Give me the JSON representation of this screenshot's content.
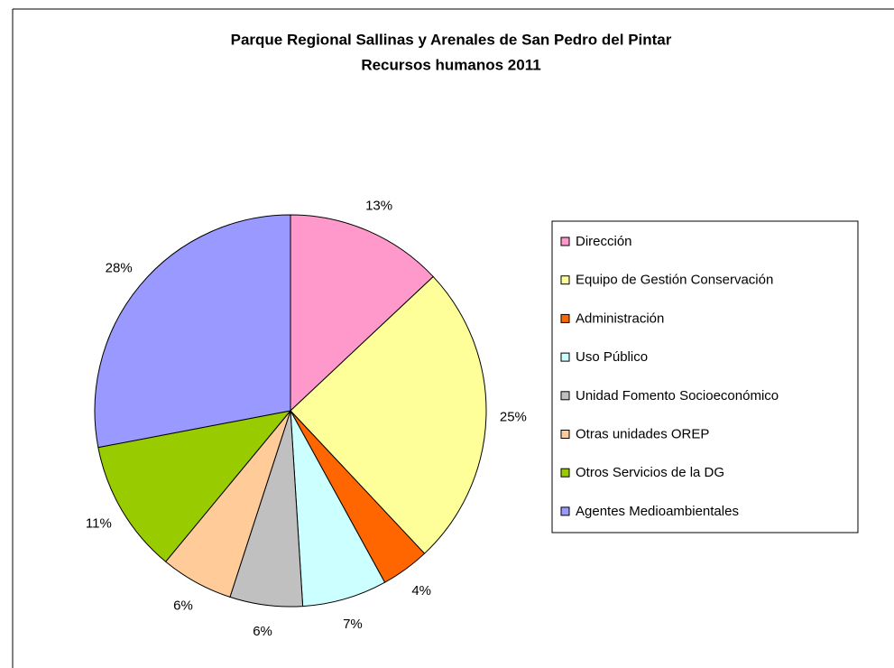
{
  "chart_data": {
    "type": "pie",
    "title": "Parque Regional Sallinas y Arenales de San Pedro del Pintar",
    "subtitle": "Recursos humanos 2011",
    "categories": [
      "Dirección",
      "Equipo de Gestión Conservación",
      "Administración",
      "Uso Público",
      "Unidad Fomento Socioeconómico",
      "Otras unidades OREP",
      "Otros Servicios de la DG",
      "Agentes Medioambientales"
    ],
    "values": [
      13,
      25,
      4,
      7,
      6,
      6,
      11,
      28
    ],
    "value_labels": [
      "13%",
      "25%",
      "4%",
      "7%",
      "6%",
      "6%",
      "11%",
      "28%"
    ],
    "colors": [
      "#ff99cc",
      "#ffff99",
      "#ff6600",
      "#ccffff",
      "#c0c0c0",
      "#ffcc99",
      "#99cc00",
      "#9999ff"
    ],
    "legend": "right"
  }
}
